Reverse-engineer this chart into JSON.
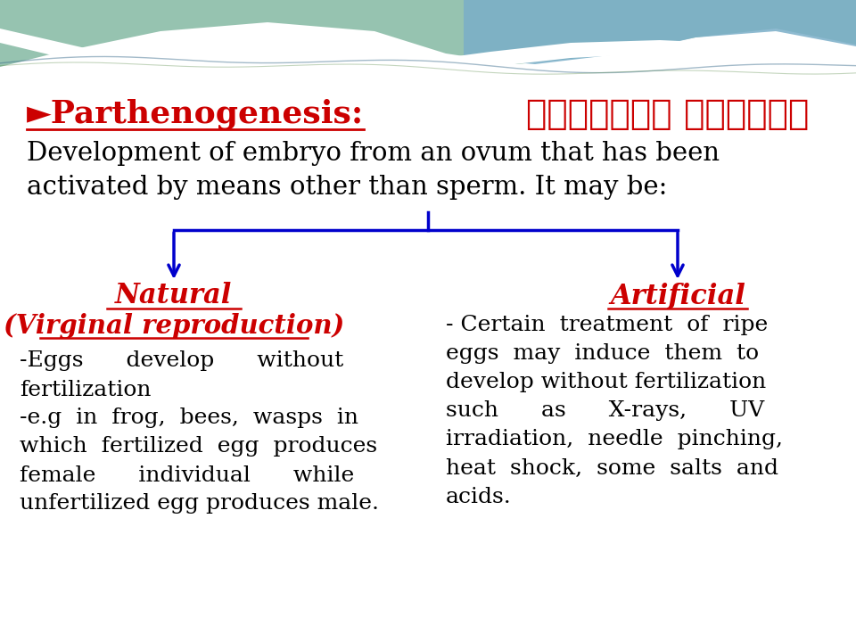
{
  "bg_color": "#ffffff",
  "title_text": "►Parthenogenesis:",
  "title_arabic": "التكاثر العذري",
  "title_color": "#cc0000",
  "intro_line1": "Development of embryo from an ovum that has been",
  "intro_line2": "activated by means other than sperm. It may be:",
  "intro_color": "#000000",
  "left_heading1": "Natural",
  "left_heading2": "(Virginal reproduction)",
  "left_heading_color": "#cc0000",
  "left_body_lines": [
    "-Eggs      develop      without",
    "fertilization",
    "-e.g  in  frog,  bees,  wasps  in",
    "which  fertilized  egg  produces",
    "female      individual      while",
    "unfertilized egg produces male."
  ],
  "right_heading": "Artificial",
  "right_heading_color": "#cc0000",
  "right_body_lines": [
    "- Certain  treatment  of  ripe",
    "eggs  may  induce  them  to",
    "develop without fertilization",
    "such      as      X-rays,      UV",
    "irradiation,  needle  pinching,",
    "heat  shock,  some  salts  and",
    "acids."
  ],
  "arrow_color": "#0000cc",
  "body_color": "#000000",
  "font_size_title": 26,
  "font_size_intro": 21,
  "font_size_heading": 22,
  "font_size_body": 18
}
